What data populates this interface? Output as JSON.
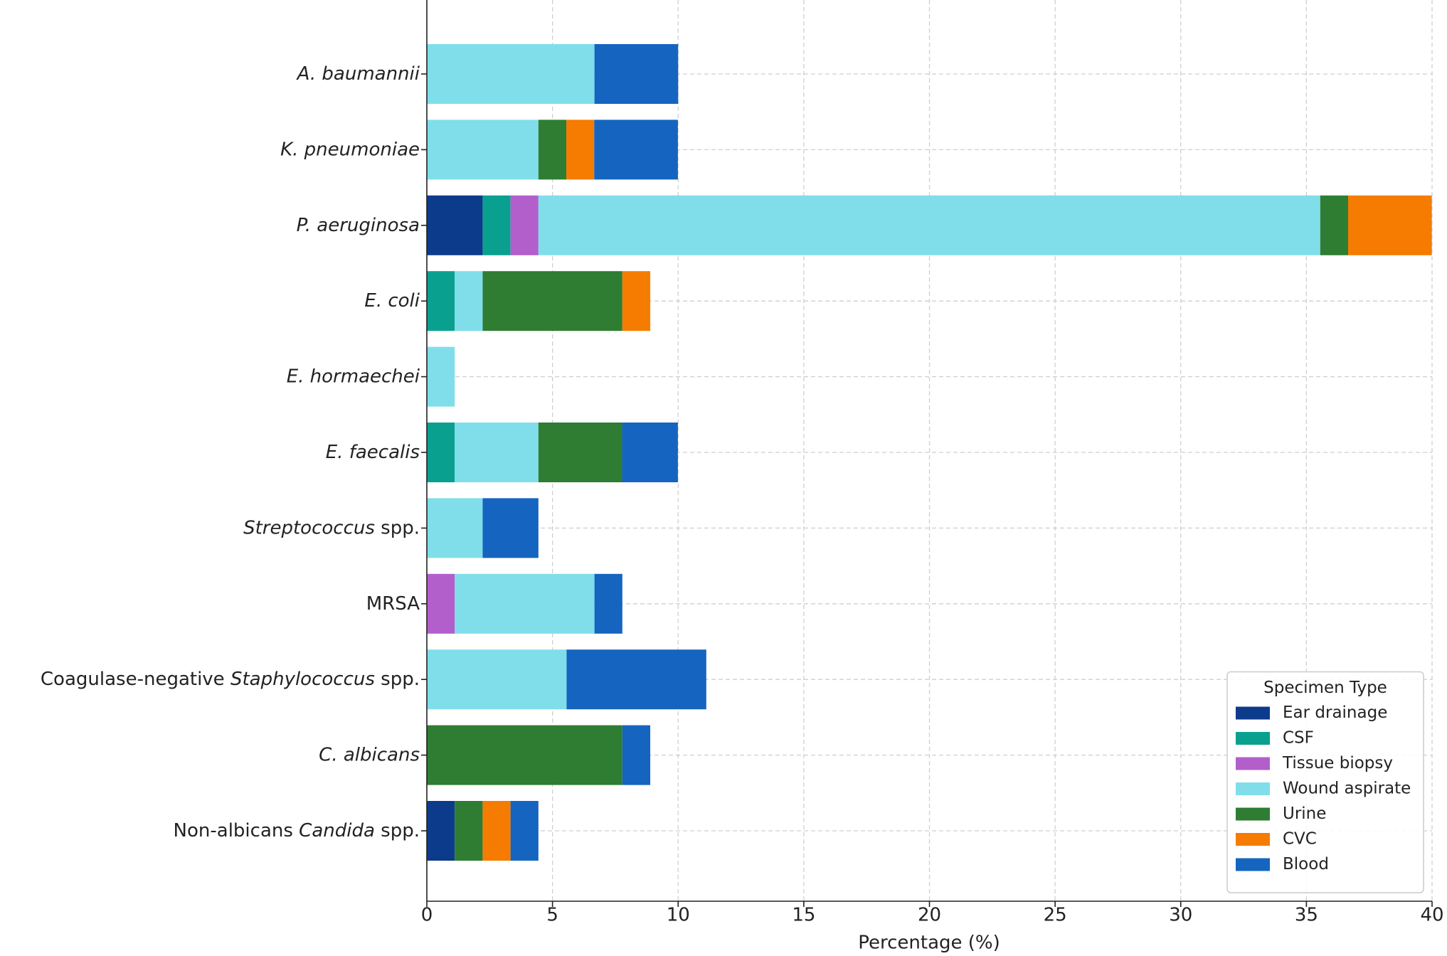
{
  "chart_data": {
    "type": "stacked-barh",
    "xlabel": "Percentage (%)",
    "legend_title": "Specimen Type",
    "legend_loc": "lower right",
    "grid": true,
    "categories": [
      [
        {
          "text": "A. baumannii",
          "italic": true
        }
      ],
      [
        {
          "text": "K. pneumoniae",
          "italic": true
        }
      ],
      [
        {
          "text": "P. aeruginosa",
          "italic": true
        }
      ],
      [
        {
          "text": "E. coli",
          "italic": true
        }
      ],
      [
        {
          "text": "E. hormaechei",
          "italic": true
        }
      ],
      [
        {
          "text": "E. faecalis",
          "italic": true
        }
      ],
      [
        {
          "text": "Streptococcus",
          "italic": true
        },
        {
          "text": " spp.",
          "italic": false
        }
      ],
      [
        {
          "text": "MRSA",
          "italic": false
        }
      ],
      [
        {
          "text": "Coagulase-negative ",
          "italic": false
        },
        {
          "text": "Staphylococcus",
          "italic": true
        },
        {
          "text": " spp.",
          "italic": false
        }
      ],
      [
        {
          "text": "C. albicans",
          "italic": true
        }
      ],
      [
        {
          "text": "Non-albicans ",
          "italic": false
        },
        {
          "text": "Candida",
          "italic": true
        },
        {
          "text": " spp.",
          "italic": false
        }
      ]
    ],
    "series": [
      {
        "name": "Ear drainage",
        "color": "#0d3b8c",
        "values": [
          0,
          0,
          2.22,
          0,
          0,
          0,
          0,
          0,
          0,
          0,
          1.11
        ]
      },
      {
        "name": "CSF",
        "color": "#0aa08f",
        "values": [
          0,
          0,
          1.11,
          1.11,
          0,
          1.11,
          0,
          0,
          0,
          0,
          0
        ]
      },
      {
        "name": "Tissue biopsy",
        "color": "#b25fcc",
        "values": [
          0,
          0,
          1.11,
          0,
          0,
          0,
          0,
          1.11,
          0,
          0,
          0
        ]
      },
      {
        "name": "Wound aspirate",
        "color": "#80deea",
        "values": [
          6.67,
          4.44,
          31.11,
          1.11,
          1.11,
          3.33,
          2.22,
          5.56,
          5.56,
          0,
          0
        ]
      },
      {
        "name": "Urine",
        "color": "#2e7d32",
        "values": [
          0,
          1.11,
          1.11,
          5.56,
          0,
          3.33,
          0,
          0,
          0,
          7.78,
          1.11
        ]
      },
      {
        "name": "CVC",
        "color": "#f57c00",
        "values": [
          0,
          1.11,
          3.33,
          1.11,
          0,
          0,
          0,
          0,
          0,
          0,
          1.11
        ]
      },
      {
        "name": "Blood",
        "color": "#1565c0",
        "values": [
          3.33,
          3.33,
          0,
          0,
          0,
          2.22,
          2.22,
          1.11,
          5.56,
          1.11,
          1.11
        ]
      }
    ],
    "xlim": [
      0,
      40
    ],
    "xticks": [
      0,
      5,
      10,
      15,
      20,
      25,
      30,
      35,
      40
    ]
  }
}
